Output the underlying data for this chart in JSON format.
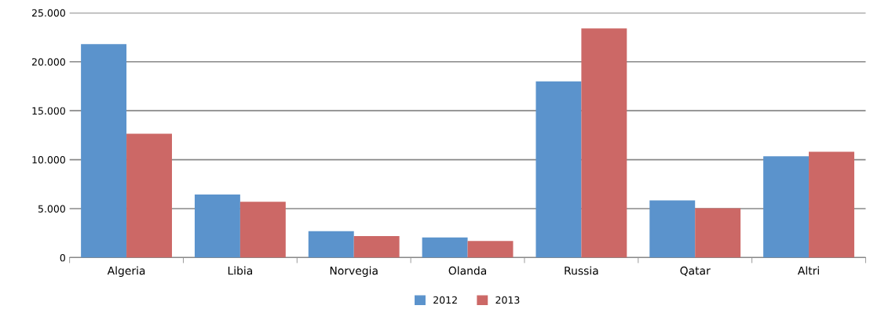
{
  "chart_data": {
    "type": "bar",
    "categories": [
      "Algeria",
      "Libia",
      "Norvegia",
      "Olanda",
      "Russia",
      "Qatar",
      "Altri"
    ],
    "series": [
      {
        "name": "2012",
        "color": "#5b93cc",
        "values": [
          21800,
          6450,
          2700,
          2050,
          18000,
          5850,
          10350
        ]
      },
      {
        "name": "2013",
        "color": "#cc6866",
        "values": [
          12650,
          5700,
          2200,
          1700,
          23400,
          5050,
          10800
        ]
      }
    ],
    "ylim": [
      0,
      25000
    ],
    "yticks": [
      {
        "value": 0,
        "label": "0"
      },
      {
        "value": 5000,
        "label": "5.000"
      },
      {
        "value": 10000,
        "label": "10.000"
      },
      {
        "value": 15000,
        "label": "15.000"
      },
      {
        "value": 20000,
        "label": "20.000"
      },
      {
        "value": 25000,
        "label": "25.000"
      }
    ],
    "grid": "y",
    "legend": "bottom"
  }
}
